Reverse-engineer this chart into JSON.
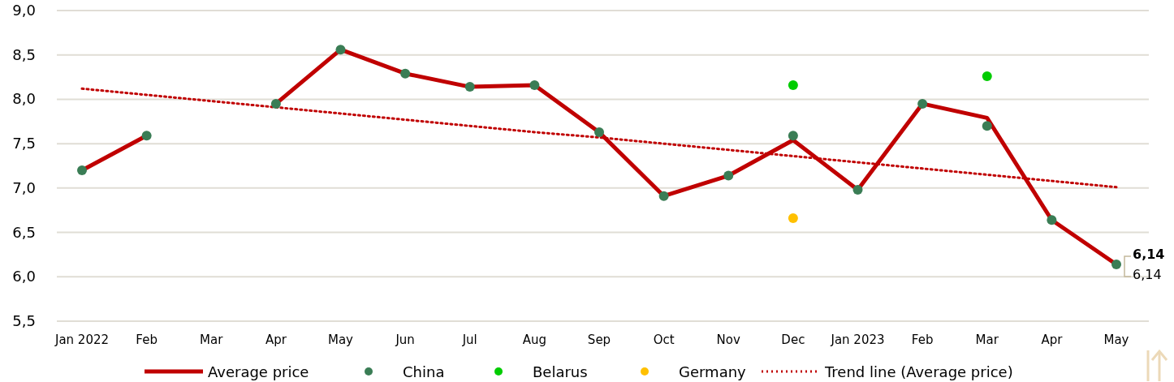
{
  "chart_data": {
    "type": "line",
    "categories": [
      "Jan 2022",
      "Feb",
      "Mar",
      "Apr",
      "May",
      "Jun",
      "Jul",
      "Aug",
      "Sep",
      "Oct",
      "Nov",
      "Dec",
      "Jan 2023",
      "Feb",
      "Mar",
      "Apr",
      "May"
    ],
    "ylim": [
      5.5,
      9.0
    ],
    "yticks": [
      {
        "value": 5.5,
        "label": "5,5"
      },
      {
        "value": 6.0,
        "label": "6,0"
      },
      {
        "value": 6.5,
        "label": "6,5"
      },
      {
        "value": 7.0,
        "label": "7,0"
      },
      {
        "value": 7.5,
        "label": "7,5"
      },
      {
        "value": 8.0,
        "label": "8,0"
      },
      {
        "value": 8.5,
        "label": "8,5"
      },
      {
        "value": 9.0,
        "label": "9,0"
      }
    ],
    "grid": "y",
    "legend": "bottom",
    "series": [
      {
        "name": "Average price",
        "color": "#c00000",
        "line_style": "solid",
        "values": [
          7.2,
          7.59,
          null,
          7.95,
          8.56,
          8.29,
          8.14,
          8.16,
          7.63,
          6.91,
          7.14,
          7.54,
          6.98,
          7.95,
          7.79,
          6.64,
          6.14
        ],
        "value_labels": [
          null,
          null,
          null,
          null,
          null,
          null,
          null,
          null,
          null,
          null,
          null,
          null,
          null,
          null,
          null,
          null,
          "6,14"
        ]
      },
      {
        "name": "China",
        "type": "scatter",
        "marker": "circle",
        "color": "#3a7d55",
        "values": [
          7.2,
          7.59,
          null,
          7.95,
          8.56,
          8.29,
          8.14,
          8.16,
          7.63,
          6.91,
          7.14,
          7.59,
          6.98,
          7.95,
          7.7,
          6.64,
          6.14
        ],
        "value_labels": [
          null,
          null,
          null,
          null,
          null,
          null,
          null,
          null,
          null,
          null,
          null,
          null,
          null,
          null,
          null,
          null,
          "6,14"
        ]
      },
      {
        "name": "Belarus",
        "type": "scatter",
        "marker": "circle",
        "color": "#00cc00",
        "values": [
          null,
          null,
          null,
          null,
          null,
          null,
          null,
          null,
          null,
          null,
          null,
          8.16,
          null,
          null,
          8.26,
          null,
          null
        ]
      },
      {
        "name": "Germany",
        "type": "scatter",
        "marker": "circle",
        "color": "#ffc000",
        "values": [
          null,
          null,
          null,
          null,
          null,
          null,
          null,
          null,
          null,
          null,
          null,
          6.66,
          null,
          null,
          null,
          null,
          null
        ]
      },
      {
        "name": "Trend line (Average price)",
        "color": "#c00000",
        "line_style": "dotted",
        "values": [
          8.12,
          8.05,
          7.98,
          7.91,
          7.84,
          7.77,
          7.7,
          7.63,
          7.57,
          7.5,
          7.43,
          7.36,
          7.29,
          7.22,
          7.15,
          7.08,
          7.01
        ]
      }
    ]
  }
}
